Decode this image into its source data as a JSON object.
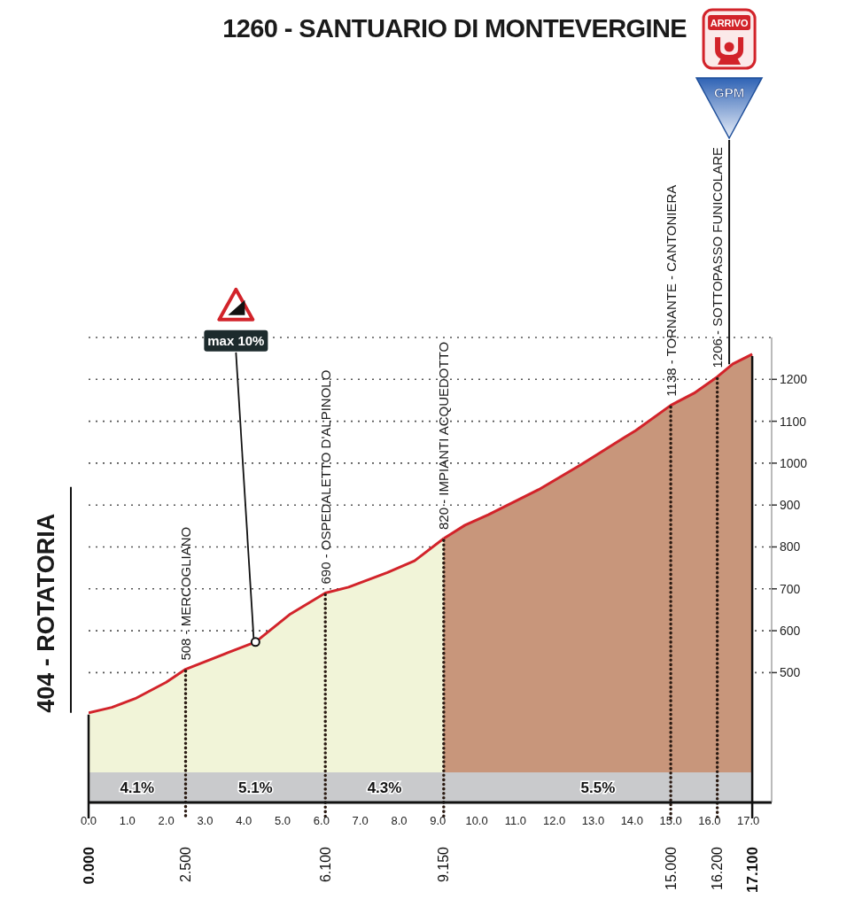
{
  "chart_data": {
    "type": "area",
    "title": "1260 - SANTUARIO DI MONTEVERGINE",
    "series": [
      {
        "color": "#f1f4d8",
        "x": [
          0,
          0.6,
          1.2,
          2.0,
          2.5,
          3.6,
          4.3,
          5.2,
          6.1,
          6.7,
          7.7,
          8.4,
          9.15
        ],
        "values": [
          404,
          417,
          438,
          477,
          508,
          548,
          573,
          640,
          690,
          704,
          739,
          767,
          820
        ]
      },
      {
        "color": "#c8967b",
        "x": [
          9.15,
          9.7,
          10.3,
          11.6,
          12.7,
          13.8,
          14.1,
          15.0,
          15.6,
          16.2,
          16.6,
          17.1
        ],
        "values": [
          820,
          852,
          877,
          937,
          997,
          1061,
          1078,
          1138,
          1167,
          1206,
          1237,
          1260
        ]
      }
    ],
    "xlim": [
      0,
      17.6
    ],
    "xticks": [
      {
        "value": 0,
        "label": "0.0"
      },
      {
        "value": 1,
        "label": "1.0"
      },
      {
        "value": 2,
        "label": "2.0"
      },
      {
        "value": 3,
        "label": "3.0"
      },
      {
        "value": 4,
        "label": "4.0"
      },
      {
        "value": 5,
        "label": "5.0"
      },
      {
        "value": 6,
        "label": "6.0"
      },
      {
        "value": 7,
        "label": "7.0"
      },
      {
        "value": 8,
        "label": "8.0"
      },
      {
        "value": 9,
        "label": "9.0"
      },
      {
        "value": 10,
        "label": "10.0"
      },
      {
        "value": 11,
        "label": "11.0"
      },
      {
        "value": 12,
        "label": "12.0"
      },
      {
        "value": 13,
        "label": "13.0"
      },
      {
        "value": 14,
        "label": "14.0"
      },
      {
        "value": 15,
        "label": "15.0"
      },
      {
        "value": 16,
        "label": "16.0"
      },
      {
        "value": 17,
        "label": "17.0"
      }
    ],
    "ylim": [
      190,
      1300
    ],
    "yticks": [
      500,
      600,
      700,
      800,
      900,
      1000,
      1100,
      1200
    ],
    "grid": "y",
    "bands": [
      {
        "axis": "x",
        "from": 0,
        "to": 2.5,
        "label": "4.1%",
        "color": "#c9cacc"
      },
      {
        "axis": "x",
        "from": 2.5,
        "to": 6.1,
        "label": "5.1%",
        "color": "#c9cacc"
      },
      {
        "axis": "x",
        "from": 6.1,
        "to": 9.15,
        "label": "4.3%",
        "color": "#c9cacc"
      },
      {
        "axis": "x",
        "from": 9.15,
        "to": 17.1,
        "label": "5.5%",
        "color": "#c9cacc"
      }
    ],
    "ref_lines": [
      {
        "axis": "x",
        "value": 0,
        "label": "0.000",
        "line_style": "solid",
        "color": "#111111"
      },
      {
        "axis": "x",
        "value": 2.5,
        "label": "2.500",
        "line_style": "dotted",
        "color": "#2a1a12"
      },
      {
        "axis": "x",
        "value": 6.1,
        "label": "6.100",
        "line_style": "dotted",
        "color": "#2a1a12"
      },
      {
        "axis": "x",
        "value": 9.15,
        "label": "9.150",
        "line_style": "dotted",
        "color": "#2a1a12"
      },
      {
        "axis": "x",
        "value": 15.0,
        "label": "15.000",
        "line_style": "dotted",
        "color": "#2a1a12"
      },
      {
        "axis": "x",
        "value": 16.2,
        "label": "16.200",
        "line_style": "dotted",
        "color": "#2a1a12"
      },
      {
        "axis": "x",
        "value": 17.1,
        "label": "17.100",
        "line_style": "solid",
        "color": "#111111"
      }
    ],
    "annotations": [
      {
        "text": "404 - ROTATORIA",
        "x": 0,
        "y": 404
      },
      {
        "text": "508 - MERCOGLIANO",
        "x": 2.5,
        "y": 508
      },
      {
        "text": "690 - OSPEDALETTO D'ALPINOLO",
        "x": 6.1,
        "y": 690
      },
      {
        "text": "820 - IMPIANTI ACQUEDOTTO",
        "x": 9.15,
        "y": 820
      },
      {
        "text": "1138 - TORNANTE - CANTONIERA",
        "x": 15.0,
        "y": 1138
      },
      {
        "text": "1206 - SOTTOPASSO FUNICOLARE",
        "x": 16.2,
        "y": 1206
      },
      {
        "text": "max 10%",
        "x": 4.3,
        "y": 573
      },
      "ARRIVO",
      "GPM"
    ]
  }
}
